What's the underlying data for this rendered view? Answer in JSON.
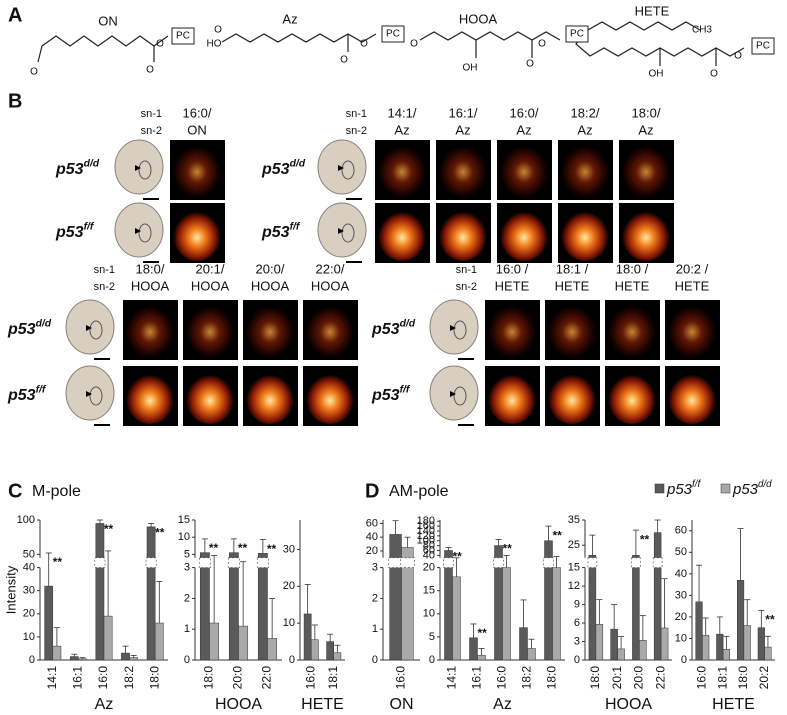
{
  "panel_a": {
    "label": "A",
    "structures": [
      {
        "name": "ON",
        "pc": "PC",
        "atoms": [
          "O",
          "O",
          "O"
        ]
      },
      {
        "name": "Az",
        "pc": "PC",
        "atoms": [
          "HO",
          "O",
          "O",
          "O"
        ]
      },
      {
        "name": "HOOA",
        "pc": "PC",
        "atoms": [
          "O",
          "OH",
          "O",
          "O"
        ]
      },
      {
        "name": "HETE",
        "pc": "PC",
        "atoms": [
          "CH3",
          "OH",
          "O",
          "O"
        ]
      }
    ]
  },
  "panel_b": {
    "label": "B",
    "groups": [
      {
        "sn": [
          "sn-1",
          "sn-2"
        ],
        "columns": [
          [
            "16:0/",
            "ON"
          ]
        ],
        "rows": [
          {
            "base": "p53",
            "sup": "d/d"
          },
          {
            "base": "p53",
            "sup": "f/f"
          }
        ]
      },
      {
        "sn": [
          "sn-1",
          "sn-2"
        ],
        "columns": [
          [
            "14:1/",
            "Az"
          ],
          [
            "16:1/",
            "Az"
          ],
          [
            "16:0/",
            "Az"
          ],
          [
            "18:2/",
            "Az"
          ],
          [
            "18:0/",
            "Az"
          ]
        ],
        "rows": [
          {
            "base": "p53",
            "sup": "d/d"
          },
          {
            "base": "p53",
            "sup": "f/f"
          }
        ]
      },
      {
        "sn": [
          "sn-1",
          "sn-2"
        ],
        "columns": [
          [
            "18:0/",
            "HOOA"
          ],
          [
            "20:1/",
            "HOOA"
          ],
          [
            "20:0/",
            "HOOA"
          ],
          [
            "22:0/",
            "HOOA"
          ]
        ],
        "rows": [
          {
            "base": "p53",
            "sup": "d/d"
          },
          {
            "base": "p53",
            "sup": "f/f"
          }
        ]
      },
      {
        "sn": [
          "sn-1",
          "sn-2"
        ],
        "columns": [
          [
            "16:0 /",
            "HETE"
          ],
          [
            "18:1 /",
            "HETE"
          ],
          [
            "18:0 /",
            "HETE"
          ],
          [
            "20:2 /",
            "HETE"
          ]
        ],
        "rows": [
          {
            "base": "p53",
            "sup": "d/d"
          },
          {
            "base": "p53",
            "sup": "f/f"
          }
        ]
      }
    ]
  },
  "panel_c": {
    "label": "C",
    "title": "M-pole",
    "y_label": "Intensity",
    "charts": [
      {
        "type": "bar",
        "group_label": "Az",
        "categories": [
          "14:1",
          "16:1",
          "16:0",
          "18:2",
          "18:0"
        ],
        "segments": [
          {
            "ylim": [
              0,
              40
            ],
            "yticks": [
              0,
              10,
              20,
              30,
              40
            ]
          },
          {
            "ylim": [
              45,
              100
            ],
            "yticks": [
              50,
              100
            ]
          }
        ],
        "series": [
          {
            "values": [
              32,
              1.5,
              95,
              3,
              90
            ],
            "errors": [
              20,
              1,
              5,
              3,
              5
            ]
          },
          {
            "values": [
              6,
              0.5,
              19,
              1,
              16
            ],
            "errors": [
              8,
              0.5,
              36,
              1,
              18
            ]
          }
        ],
        "significance": [
          "**",
          null,
          "**",
          null,
          "**"
        ]
      },
      {
        "type": "bar",
        "group_label": "HOOA",
        "categories": [
          "18:0",
          "20:0",
          "22:0"
        ],
        "segments": [
          {
            "ylim": [
              0,
              3
            ],
            "yticks": [
              0,
              1,
              2,
              3
            ]
          },
          {
            "ylim": [
              4,
              15
            ],
            "yticks": [
              5,
              10,
              15
            ]
          }
        ],
        "series": [
          {
            "values": [
              5.5,
              5.5,
              5.3
            ],
            "errors": [
              4,
              4,
              4
            ]
          },
          {
            "values": [
              1.2,
              1.1,
              0.7
            ],
            "errors": [
              3.5,
              2.5,
              1.3
            ]
          }
        ],
        "significance": [
          "**",
          "**",
          "**"
        ]
      },
      {
        "type": "bar",
        "group_label": "HETE",
        "categories": [
          "16:0",
          "18:1"
        ],
        "segments": [
          {
            "ylim": [
              0,
              38
            ],
            "yticks": [
              0,
              10,
              20,
              30
            ]
          }
        ],
        "series": [
          {
            "values": [
              12.5,
              5
            ],
            "errors": [
              8,
              2
            ]
          },
          {
            "values": [
              5.5,
              2
            ],
            "errors": [
              4,
              2
            ]
          }
        ]
      }
    ]
  },
  "panel_d": {
    "label": "D",
    "title": "AM-pole",
    "legend": [
      {
        "base": "p53",
        "sup": "f/f",
        "color": "#5a5a5a"
      },
      {
        "base": "p53",
        "sup": "d/d",
        "color": "#a9a9a9"
      }
    ],
    "charts": [
      {
        "type": "bar",
        "group_label": "ON",
        "categories": [
          "16:0"
        ],
        "segments": [
          {
            "ylim": [
              0,
              3
            ],
            "yticks": [
              0,
              1,
              2,
              3
            ]
          },
          {
            "ylim": [
              10,
              65
            ],
            "yticks": [
              20,
              40,
              60
            ]
          }
        ],
        "series": [
          {
            "values": [
              44
            ],
            "errors": [
              20
            ]
          },
          {
            "values": [
              25
            ],
            "errors": [
              15
            ]
          }
        ]
      },
      {
        "type": "bar",
        "group_label": "Az",
        "categories": [
          "14:1",
          "16:1",
          "16:0",
          "18:2",
          "18:0"
        ],
        "segments": [
          {
            "ylim": [
              0,
              20
            ],
            "yticks": [
              0,
              5,
              10,
              15,
              20
            ]
          },
          {
            "ylim": [
              30,
              185
            ],
            "yticks": [
              40,
              60,
              80,
              100,
              120,
              140,
              160,
              180
            ]
          }
        ],
        "series": [
          {
            "values": [
              60,
              4.8,
              80,
              7,
              100
            ],
            "errors": [
              12,
              3,
              25,
              6,
              60
            ]
          },
          {
            "values": [
              18,
              1,
              20,
              2.5,
              20
            ],
            "errors": [
              12,
              1.5,
              20,
              2,
              15
            ]
          }
        ],
        "significance": [
          "**",
          "**",
          "**",
          null,
          "**"
        ]
      },
      {
        "type": "bar",
        "group_label": "HOOA",
        "categories": [
          "18:0",
          "20:1",
          "20:0",
          "22:0"
        ],
        "segments": [
          {
            "ylim": [
              0,
              15
            ],
            "yticks": [
              0,
              3,
              6,
              9,
              12,
              15
            ]
          },
          {
            "ylim": [
              20,
              35
            ],
            "yticks": [
              25,
              35
            ]
          }
        ],
        "series": [
          {
            "values": [
              21,
              5,
              21,
              30
            ],
            "errors": [
              8,
              4,
              10,
              5
            ]
          },
          {
            "values": [
              5.8,
              1.8,
              3.2,
              5.2
            ],
            "errors": [
              4,
              2,
              4,
              8
            ]
          }
        ],
        "significance": [
          null,
          null,
          "**",
          null
        ]
      },
      {
        "type": "bar",
        "group_label": "HETE",
        "categories": [
          "16:0",
          "18:1",
          "18:0",
          "20:2"
        ],
        "segments": [
          {
            "ylim": [
              0,
              65
            ],
            "yticks": [
              0,
              10,
              20,
              30,
              40,
              50,
              60
            ]
          }
        ],
        "series": [
          {
            "values": [
              27,
              12,
              37,
              15
            ],
            "errors": [
              17,
              8,
              24,
              8
            ]
          },
          {
            "values": [
              11.5,
              5,
              16,
              6
            ],
            "errors": [
              8,
              6,
              12,
              5
            ]
          }
        ],
        "significance": [
          null,
          null,
          null,
          "**"
        ]
      }
    ]
  }
}
